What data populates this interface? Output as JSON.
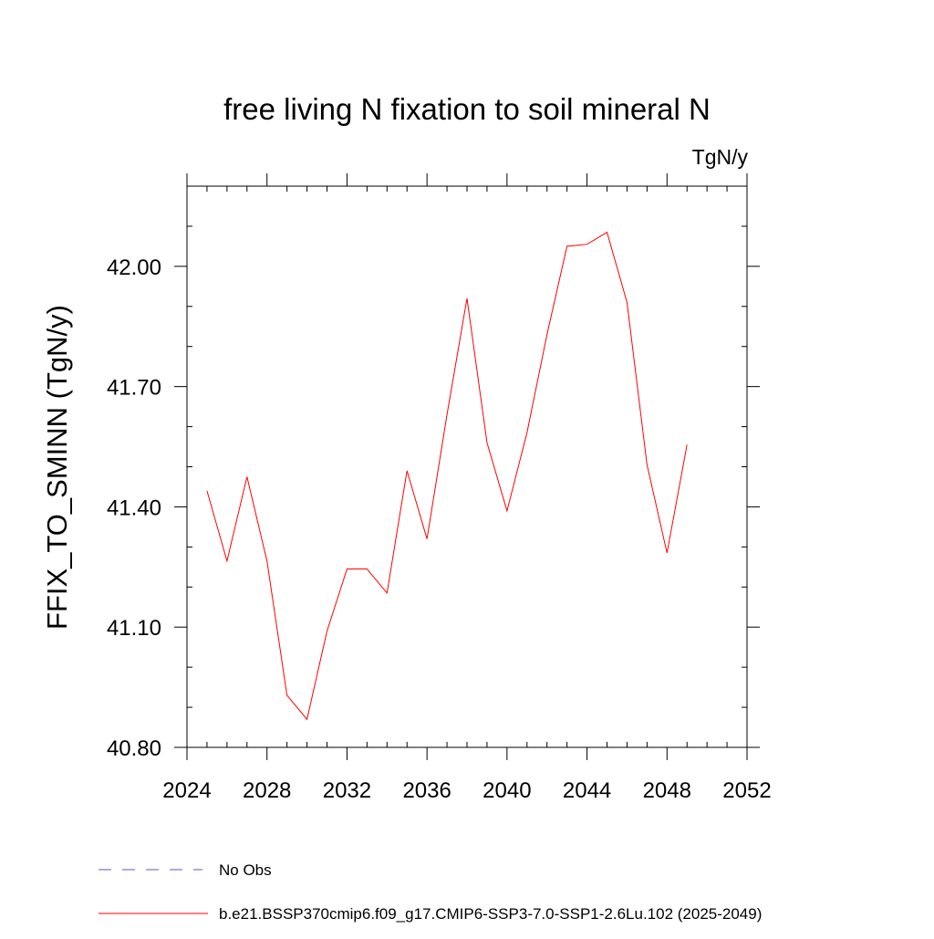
{
  "chart_data": {
    "type": "line",
    "title": "free living N fixation to soil mineral N",
    "units": "TgN/y",
    "xlabel": "",
    "ylabel": "FFIX_TO_SMINN  (TgN/y)",
    "xlim": [
      2024,
      2052
    ],
    "ylim": [
      40.8,
      42.2
    ],
    "x_ticks": [
      2024,
      2028,
      2032,
      2036,
      2040,
      2044,
      2048,
      2052
    ],
    "y_ticks": [
      40.8,
      41.1,
      41.4,
      41.7,
      42.0
    ],
    "y_tick_labels": [
      "40.80",
      "41.10",
      "41.40",
      "41.70",
      "42.00"
    ],
    "x_minor_step": 1,
    "y_minor_step": 0.1,
    "grid": false,
    "series": [
      {
        "name": "b.e21.BSSP370cmip6.f09_g17.CMIP6-SSP3-7.0-SSP1-2.6Lu.102 (2025-2049)",
        "color": "#ff0000",
        "x": [
          2025,
          2026,
          2027,
          2028,
          2029,
          2030,
          2031,
          2032,
          2033,
          2034,
          2035,
          2036,
          2037,
          2038,
          2039,
          2040,
          2041,
          2042,
          2043,
          2044,
          2045,
          2046,
          2047,
          2048,
          2049
        ],
        "values": [
          41.44,
          41.265,
          41.475,
          41.265,
          40.93,
          40.87,
          41.09,
          41.245,
          41.245,
          41.185,
          41.49,
          41.32,
          41.63,
          41.92,
          41.56,
          41.39,
          41.585,
          41.83,
          42.05,
          42.055,
          42.085,
          41.91,
          41.505,
          41.285,
          41.555
        ]
      }
    ],
    "legend": {
      "position": "bottom",
      "entries": [
        {
          "label": "No Obs",
          "color": "#5a5ab8",
          "style": "dashed"
        },
        {
          "label": "b.e21.BSSP370cmip6.f09_g17.CMIP6-SSP3-7.0-SSP1-2.6Lu.102 (2025-2049)",
          "color": "#ff0000",
          "style": "solid"
        }
      ]
    }
  }
}
